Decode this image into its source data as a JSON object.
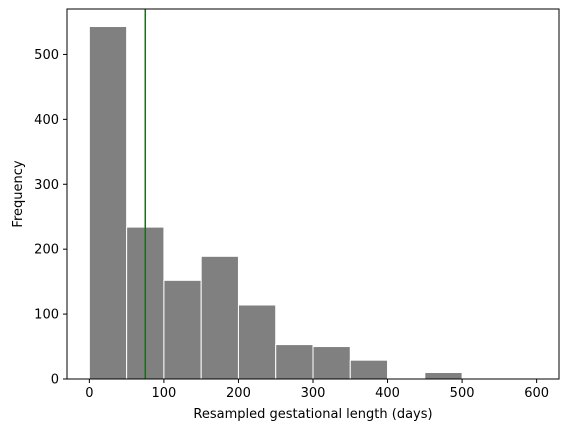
{
  "chart_data": {
    "type": "bar",
    "title": "",
    "xlabel": "Resampled gestational length (days)",
    "ylabel": "Frequency",
    "xlim": [
      -30,
      630
    ],
    "ylim": [
      0,
      570
    ],
    "xticks": [
      0,
      100,
      200,
      300,
      400,
      500,
      600
    ],
    "yticks": [
      0,
      100,
      200,
      300,
      400,
      500
    ],
    "bins": [
      {
        "start": 0,
        "end": 50,
        "count": 543
      },
      {
        "start": 50,
        "end": 100,
        "count": 234
      },
      {
        "start": 100,
        "end": 150,
        "count": 152
      },
      {
        "start": 150,
        "end": 200,
        "count": 189
      },
      {
        "start": 200,
        "end": 250,
        "count": 114
      },
      {
        "start": 250,
        "end": 300,
        "count": 53
      },
      {
        "start": 300,
        "end": 350,
        "count": 50
      },
      {
        "start": 350,
        "end": 400,
        "count": 29
      },
      {
        "start": 400,
        "end": 450,
        "count": 0
      },
      {
        "start": 450,
        "end": 500,
        "count": 10
      },
      {
        "start": 500,
        "end": 550,
        "count": 1
      },
      {
        "start": 550,
        "end": 600,
        "count": 1
      }
    ],
    "vline": {
      "x": 75,
      "color": "#008000"
    },
    "bar_color": "#808080",
    "bar_edge_color": "#ffffff",
    "grid": false,
    "legend": "none"
  }
}
